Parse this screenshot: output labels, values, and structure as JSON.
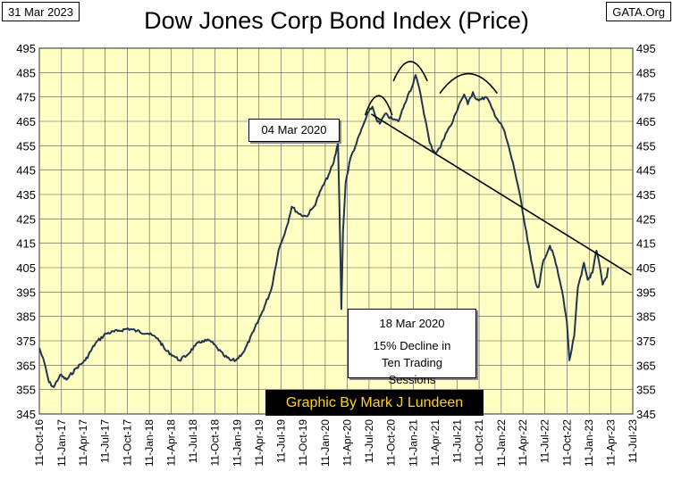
{
  "header": {
    "date": "31 Mar 2023",
    "site": "GATA.Org"
  },
  "chart_data": {
    "type": "line",
    "title": "Dow Jones Corp Bond Index (Price)",
    "xlabel": "",
    "ylabel": "",
    "ylim": [
      345,
      495
    ],
    "yticks": [
      345,
      355,
      365,
      375,
      385,
      395,
      405,
      415,
      425,
      435,
      445,
      455,
      465,
      475,
      485,
      495
    ],
    "xlim": [
      "2016-10-11",
      "2023-07-11"
    ],
    "xticks": [
      "11-Oct-16",
      "11-Jan-17",
      "11-Apr-17",
      "11-Jul-17",
      "11-Oct-17",
      "11-Jan-18",
      "11-Apr-18",
      "11-Jul-18",
      "11-Oct-18",
      "11-Jan-19",
      "11-Apr-19",
      "11-Jul-19",
      "11-Oct-19",
      "11-Jan-20",
      "11-Apr-20",
      "11-Jul-20",
      "11-Oct-20",
      "11-Jan-21",
      "11-Apr-21",
      "11-Jul-21",
      "11-Oct-21",
      "11-Jan-22",
      "11-Apr-22",
      "11-Jul-22",
      "11-Oct-22",
      "11-Jan-23",
      "11-Apr-23",
      "11-Jul-23"
    ],
    "grid": true,
    "series": [
      {
        "name": "Dow Jones Corp Bond Index",
        "color": "#1f3550",
        "x": [
          "2016-10-11",
          "2016-11-01",
          "2016-11-20",
          "2016-12-10",
          "2017-01-05",
          "2017-02-01",
          "2017-03-15",
          "2017-04-20",
          "2017-06-01",
          "2017-07-15",
          "2017-09-01",
          "2017-10-15",
          "2017-11-20",
          "2018-01-05",
          "2018-02-15",
          "2018-03-20",
          "2018-04-20",
          "2018-05-15",
          "2018-06-15",
          "2018-07-20",
          "2018-08-20",
          "2018-09-20",
          "2018-10-20",
          "2018-11-15",
          "2018-12-15",
          "2019-01-05",
          "2019-02-10",
          "2019-03-20",
          "2019-04-25",
          "2019-06-01",
          "2019-07-01",
          "2019-08-05",
          "2019-08-25",
          "2019-09-25",
          "2019-10-25",
          "2019-11-25",
          "2019-12-25",
          "2020-01-25",
          "2020-02-15",
          "2020-03-04",
          "2020-03-10",
          "2020-03-18",
          "2020-03-25",
          "2020-04-05",
          "2020-04-25",
          "2020-05-20",
          "2020-06-15",
          "2020-07-10",
          "2020-07-25",
          "2020-08-10",
          "2020-08-25",
          "2020-09-15",
          "2020-10-15",
          "2020-11-10",
          "2020-12-05",
          "2020-12-20",
          "2021-01-05",
          "2021-01-20",
          "2021-02-10",
          "2021-03-01",
          "2021-03-20",
          "2021-04-10",
          "2021-05-01",
          "2021-05-25",
          "2021-06-20",
          "2021-07-20",
          "2021-08-10",
          "2021-08-25",
          "2021-09-15",
          "2021-09-30",
          "2021-10-20",
          "2021-11-10",
          "2021-12-05",
          "2021-12-25",
          "2022-01-20",
          "2022-02-15",
          "2022-03-05",
          "2022-03-25",
          "2022-04-20",
          "2022-05-15",
          "2022-06-05",
          "2022-06-15",
          "2022-07-05",
          "2022-08-01",
          "2022-08-20",
          "2022-09-10",
          "2022-09-25",
          "2022-10-10",
          "2022-10-21",
          "2022-11-10",
          "2022-11-25",
          "2022-12-10",
          "2022-12-20",
          "2023-01-05",
          "2023-01-25",
          "2023-02-10",
          "2023-02-25",
          "2023-03-08",
          "2023-03-25",
          "2023-03-31"
        ],
        "values": [
          372,
          366,
          358,
          356,
          361,
          359,
          364,
          367,
          374,
          378,
          379,
          380,
          379,
          378,
          376,
          371,
          369,
          367,
          369,
          373,
          375,
          375,
          372,
          369,
          367,
          367,
          371,
          379,
          387,
          396,
          412,
          422,
          430,
          427,
          426,
          430,
          437,
          443,
          448,
          456,
          430,
          388,
          420,
          440,
          450,
          456,
          463,
          469,
          471,
          466,
          464,
          468,
          466,
          465,
          472,
          476,
          479,
          484,
          476,
          466,
          456,
          452,
          454,
          460,
          464,
          472,
          476,
          472,
          477,
          474,
          474,
          475,
          470,
          466,
          462,
          453,
          446,
          437,
          422,
          408,
          398,
          397,
          408,
          414,
          409,
          400,
          393,
          383,
          367,
          377,
          397,
          402,
          407,
          400,
          403,
          412,
          405,
          398,
          401,
          405
        ]
      }
    ],
    "trendline": {
      "x0": "2020-07-20",
      "y0": 468,
      "x1": "2023-07-05",
      "y1": 402
    },
    "annotations": [
      {
        "date_label": "04 Mar 2020"
      },
      {
        "date_label": "18 Mar 2020",
        "text": "15% Decline in Ten Trading Sessions"
      }
    ],
    "pattern_arcs": [
      {
        "from": "2020-06-25",
        "to": "2020-10-15"
      },
      {
        "from": "2020-10-20",
        "to": "2021-03-10"
      },
      {
        "from": "2021-05-01",
        "to": "2021-12-25"
      }
    ]
  },
  "credit": "Graphic By Mark J Lundeen"
}
